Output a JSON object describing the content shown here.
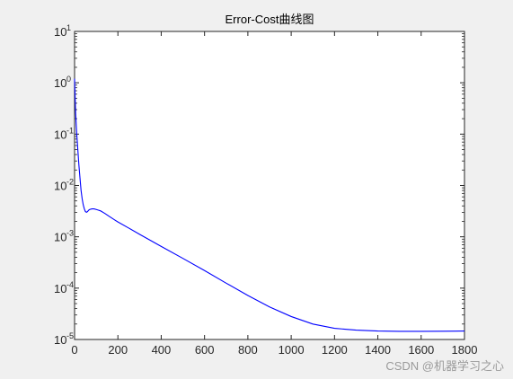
{
  "chart_data": {
    "type": "line",
    "title": "Error-Cost曲线图",
    "xlabel": "",
    "ylabel": "",
    "xlim": [
      0,
      1800
    ],
    "ylim": [
      1e-05,
      10
    ],
    "yscale": "log",
    "grid": false,
    "x_ticks": [
      0,
      200,
      400,
      600,
      800,
      1000,
      1200,
      1400,
      1600,
      1800
    ],
    "y_ticks": [
      {
        "value": 1e-05,
        "base": "10",
        "exp": "-5"
      },
      {
        "value": 0.0001,
        "base": "10",
        "exp": "-4"
      },
      {
        "value": 0.001,
        "base": "10",
        "exp": "-3"
      },
      {
        "value": 0.01,
        "base": "10",
        "exp": "-2"
      },
      {
        "value": 0.1,
        "base": "10",
        "exp": "-1"
      },
      {
        "value": 1,
        "base": "10",
        "exp": "0"
      },
      {
        "value": 10,
        "base": "10",
        "exp": "1"
      }
    ],
    "series": [
      {
        "color": "#0000ff",
        "x": [
          0,
          5,
          10,
          15,
          20,
          25,
          30,
          35,
          40,
          45,
          50,
          55,
          60,
          65,
          70,
          80,
          90,
          100,
          110,
          120,
          140,
          160,
          180,
          200,
          250,
          300,
          400,
          500,
          600,
          700,
          800,
          900,
          1000,
          1100,
          1200,
          1300,
          1400,
          1500,
          1600,
          1700,
          1800
        ],
        "y": [
          1.2,
          0.25,
          0.1,
          0.05,
          0.025,
          0.014,
          0.008,
          0.0055,
          0.0042,
          0.0035,
          0.0031,
          0.003,
          0.0031,
          0.0033,
          0.0034,
          0.0035,
          0.0035,
          0.0034,
          0.0033,
          0.0032,
          0.00285,
          0.0025,
          0.0022,
          0.00195,
          0.00148,
          0.00112,
          0.00065,
          0.00038,
          0.00022,
          0.000125,
          7.2e-05,
          4.3e-05,
          2.8e-05,
          2e-05,
          1.65e-05,
          1.52e-05,
          1.46e-05,
          1.44e-05,
          1.44e-05,
          1.45e-05,
          1.46e-05
        ]
      }
    ]
  },
  "watermark": "CSDN @机器学习之心"
}
